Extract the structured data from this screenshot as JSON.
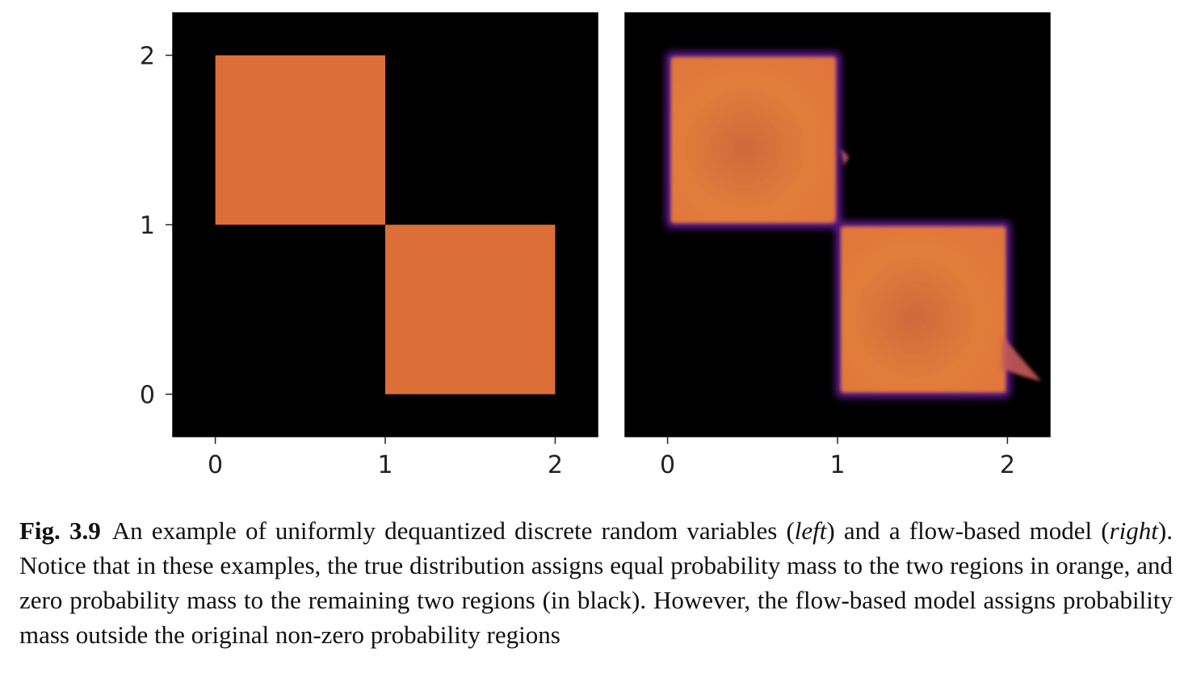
{
  "chart_data": [
    {
      "type": "heatmap",
      "panel": "left",
      "x_ticks": [
        "0",
        "1",
        "2"
      ],
      "y_ticks": [
        "0",
        "1",
        "2"
      ],
      "xlim": [
        -0.25,
        2.25
      ],
      "ylim": [
        -0.25,
        2.25
      ],
      "background_color": "#000000",
      "regions": [
        {
          "x": [
            0,
            1
          ],
          "y": [
            1,
            2
          ],
          "color": "#DC6F37"
        },
        {
          "x": [
            1,
            2
          ],
          "y": [
            0,
            1
          ],
          "color": "#DC6F37"
        }
      ]
    },
    {
      "type": "heatmap",
      "panel": "right",
      "x_ticks": [
        "0",
        "1",
        "2"
      ],
      "xlim": [
        -0.25,
        2.25
      ],
      "ylim": [
        -0.25,
        2.25
      ],
      "background_color": "#000000",
      "regions": [
        {
          "x": [
            0,
            1
          ],
          "y": [
            1,
            2
          ],
          "color": "#E07A3A"
        },
        {
          "x": [
            1,
            2
          ],
          "y": [
            0,
            1
          ],
          "color": "#E07A3A"
        }
      ],
      "edge_color": "#6A1FA0"
    }
  ],
  "caption": {
    "label": "Fig. 3.9",
    "text_parts": [
      {
        "text": "An example of uniformly dequantized discrete random variables (",
        "italic": false
      },
      {
        "text": "left",
        "italic": true
      },
      {
        "text": ") and a flow-based model (",
        "italic": false
      },
      {
        "text": "right",
        "italic": true
      },
      {
        "text": "). Notice that in these examples, the true distribution assigns equal probability mass to the two regions in orange, and zero probability mass to the remaining two regions (in black). However, the flow-based model assigns probability mass outside the original non-zero probability regions",
        "italic": false
      }
    ]
  }
}
